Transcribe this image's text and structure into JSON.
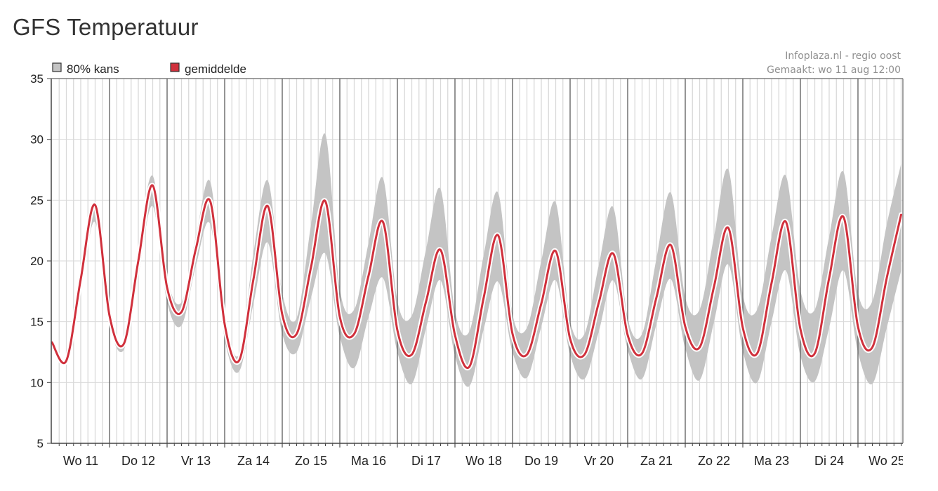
{
  "page": {
    "title": "GFS Temperatuur"
  },
  "colors": {
    "band": "#c4c4c4",
    "mean_line": "#d0303c",
    "mean_halo": "#ffffff",
    "grid": "#d9d9d9",
    "day_grid": "#666666"
  },
  "legend": [
    {
      "label": "80% kans",
      "swatch_color": "#c4c4c4"
    },
    {
      "label": "gemiddelde",
      "swatch_color": "#d0303c"
    }
  ],
  "credit": {
    "line1": "Infoplaza.nl - regio oost",
    "line2": "Gemaakt: wo 11 aug 12:00"
  },
  "chart_data": {
    "type": "area",
    "title": "GFS Temperatuur",
    "xlabel": "",
    "ylabel": "",
    "ylim": [
      5,
      35
    ],
    "yticks": [
      5,
      10,
      15,
      20,
      25,
      30,
      35
    ],
    "grid": true,
    "legend_position": "top-left",
    "day_labels": [
      "Wo 11",
      "Do 12",
      "Vr 13",
      "Za 14",
      "Zo 15",
      "Ma 16",
      "Di 17",
      "Wo 18",
      "Do 19",
      "Vr 20",
      "Za 21",
      "Zo 22",
      "Ma 23",
      "Di 24",
      "Wo 25"
    ],
    "x_unit": "days since Wo 11 00:00",
    "x": [
      0,
      0.25,
      0.5,
      0.75,
      1,
      1.25,
      1.5,
      1.75,
      2,
      2.25,
      2.5,
      2.75,
      3,
      3.25,
      3.5,
      3.75,
      4,
      4.25,
      4.5,
      4.75,
      5,
      5.25,
      5.5,
      5.75,
      6,
      6.25,
      6.5,
      6.75,
      7,
      7.25,
      7.5,
      7.75,
      8,
      8.25,
      8.5,
      8.75,
      9,
      9.25,
      9.5,
      9.75,
      10,
      10.25,
      10.5,
      10.75,
      11,
      11.25,
      11.5,
      11.75,
      12,
      12.25,
      12.5,
      12.75,
      13,
      13.25,
      13.5,
      13.75,
      14,
      14.25,
      14.5,
      14.75
    ],
    "series": [
      {
        "name": "gemiddelde",
        "values": [
          13.3,
          11.8,
          18.5,
          24.6,
          15.5,
          13.2,
          20.0,
          26.2,
          17.8,
          15.8,
          21.0,
          24.9,
          14.8,
          11.8,
          18.5,
          24.5,
          15.6,
          14.0,
          19.5,
          24.9,
          15.4,
          14.0,
          18.8,
          23.2,
          14.3,
          12.3,
          16.7,
          20.9,
          13.9,
          11.3,
          17.0,
          22.1,
          14.0,
          12.3,
          16.5,
          20.8,
          13.6,
          12.3,
          16.6,
          20.6,
          13.9,
          12.4,
          17.0,
          21.3,
          14.6,
          12.9,
          17.9,
          22.7,
          14.5,
          12.4,
          18.2,
          23.2,
          14.4,
          12.4,
          18.6,
          23.6,
          14.6,
          12.9,
          18.6,
          23.8
        ]
      },
      {
        "name": "80% kans (onder)",
        "values": [
          13.3,
          11.8,
          17.5,
          23.2,
          14.8,
          12.7,
          18.8,
          24.5,
          16.6,
          14.7,
          19.6,
          23.0,
          13.6,
          10.9,
          16.5,
          21.5,
          14.0,
          12.5,
          17.0,
          20.6,
          13.8,
          11.2,
          15.4,
          18.6,
          12.5,
          9.9,
          14.5,
          18.4,
          12.2,
          9.7,
          14.4,
          18.3,
          12.5,
          10.4,
          14.6,
          18.4,
          12.3,
          10.3,
          14.2,
          18.4,
          12.7,
          10.3,
          14.8,
          18.5,
          12.8,
          10.2,
          15.0,
          19.7,
          12.6,
          10.0,
          15.0,
          19.2,
          12.2,
          10.1,
          14.5,
          19.2,
          12.5,
          9.9,
          14.5,
          19.2
        ]
      },
      {
        "name": "80% kans (boven)",
        "values": [
          13.3,
          11.8,
          19.2,
          24.8,
          16.1,
          13.4,
          21.2,
          27.0,
          18.6,
          16.6,
          22.0,
          26.5,
          15.9,
          12.3,
          20.6,
          26.6,
          17.4,
          15.3,
          23.0,
          30.4,
          17.7,
          16.0,
          21.5,
          26.8,
          16.7,
          15.5,
          21.0,
          25.9,
          15.9,
          14.2,
          20.5,
          25.6,
          15.6,
          14.5,
          20.0,
          24.8,
          15.1,
          14.0,
          19.7,
          24.4,
          15.3,
          14.0,
          20.2,
          25.6,
          17.0,
          16.0,
          22.0,
          27.5,
          17.2,
          16.0,
          22.0,
          27.0,
          17.6,
          16.0,
          22.0,
          27.3,
          17.4,
          16.7,
          23.0,
          28.0
        ]
      }
    ]
  }
}
